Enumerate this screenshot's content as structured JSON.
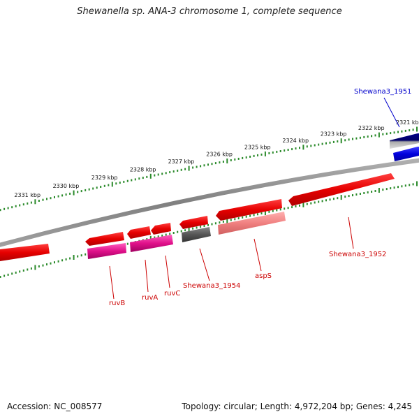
{
  "title": "Shewanella sp. ANA-3 chromosome 1, complete sequence",
  "footer": {
    "accession": "Accession: NC_008577",
    "stats": "Topology: circular; Length: 4,972,204 bp; Genes: 4,245"
  },
  "ticks": [
    {
      "label": "2321 kbp"
    },
    {
      "label": "2322 kbp"
    },
    {
      "label": "2323 kbp"
    },
    {
      "label": "2324 kbp"
    },
    {
      "label": "2325 kbp"
    },
    {
      "label": "2326 kbp"
    },
    {
      "label": "2327 kbp"
    },
    {
      "label": "2328 kbp"
    },
    {
      "label": "2329 kbp"
    },
    {
      "label": "2330 kbp"
    },
    {
      "label": "2331 kbp"
    }
  ],
  "gene_labels": [
    {
      "text": "Shewana3_1951",
      "color": "#0000cc"
    },
    {
      "text": "Shewana3_1952",
      "color": "#cc0000"
    },
    {
      "text": "aspS",
      "color": "#cc0000"
    },
    {
      "text": "Shewana3_1954",
      "color": "#cc0000"
    },
    {
      "text": "ruvC",
      "color": "#cc0000"
    },
    {
      "text": "ruvA",
      "color": "#cc0000"
    },
    {
      "text": "ruvB",
      "color": "#cc0000"
    }
  ],
  "colors": {
    "tick": "#2a8a2a",
    "backbone": "#8a8a8a",
    "gene_red": "#e60000",
    "gene_blue": "#0000dd",
    "gene_navy": "#000066",
    "gene_gray": "#555555",
    "gene_pink": "#f08080",
    "gene_magenta": "#e0108a"
  }
}
